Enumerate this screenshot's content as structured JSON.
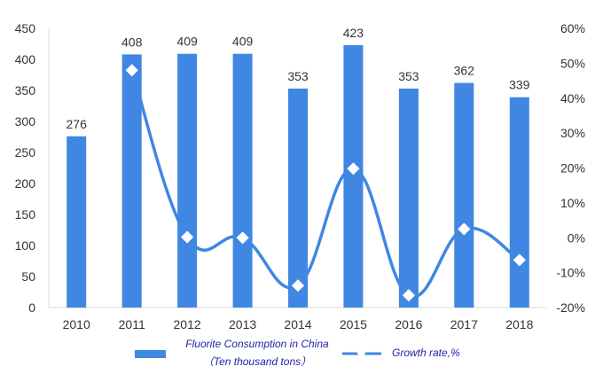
{
  "chart_data": {
    "type": "bar",
    "categories": [
      "2010",
      "2011",
      "2012",
      "2013",
      "2014",
      "2015",
      "2016",
      "2017",
      "2018"
    ],
    "series": [
      {
        "name": "Fluorite Consumption in China（Ten thousand tons）",
        "legend_lines": [
          "Fluorite Consumption in China",
          "（Ten thousand tons）"
        ],
        "type": "bar",
        "axis": "left",
        "values": [
          276,
          408,
          409,
          409,
          353,
          423,
          353,
          362,
          339
        ]
      },
      {
        "name": "Growth rate,%",
        "type": "line",
        "axis": "right",
        "values": [
          null,
          48,
          0.2,
          0,
          -13.7,
          19.8,
          -16.5,
          2.5,
          -6.4
        ]
      }
    ],
    "data_labels": [
      "276",
      "408",
      "409",
      "409",
      "353",
      "423",
      "353",
      "362",
      "339"
    ],
    "y_left": {
      "lim": [
        0,
        450
      ],
      "ticks": [
        "0",
        "50",
        "100",
        "150",
        "200",
        "250",
        "300",
        "350",
        "400",
        "450"
      ]
    },
    "y_right": {
      "lim": [
        -20,
        60
      ],
      "ticks": [
        "-20%",
        "-10%",
        "0%",
        "10%",
        "20%",
        "30%",
        "40%",
        "50%",
        "60%"
      ]
    },
    "title": "",
    "xlabel": "",
    "ylabel": "",
    "grid": false,
    "legend_position": "bottom",
    "colors": {
      "bar": "#3f87e2",
      "line": "#3f87e2",
      "marker": "#ffffff",
      "text": "#333333",
      "legend_text": "#1f1fa8"
    }
  }
}
